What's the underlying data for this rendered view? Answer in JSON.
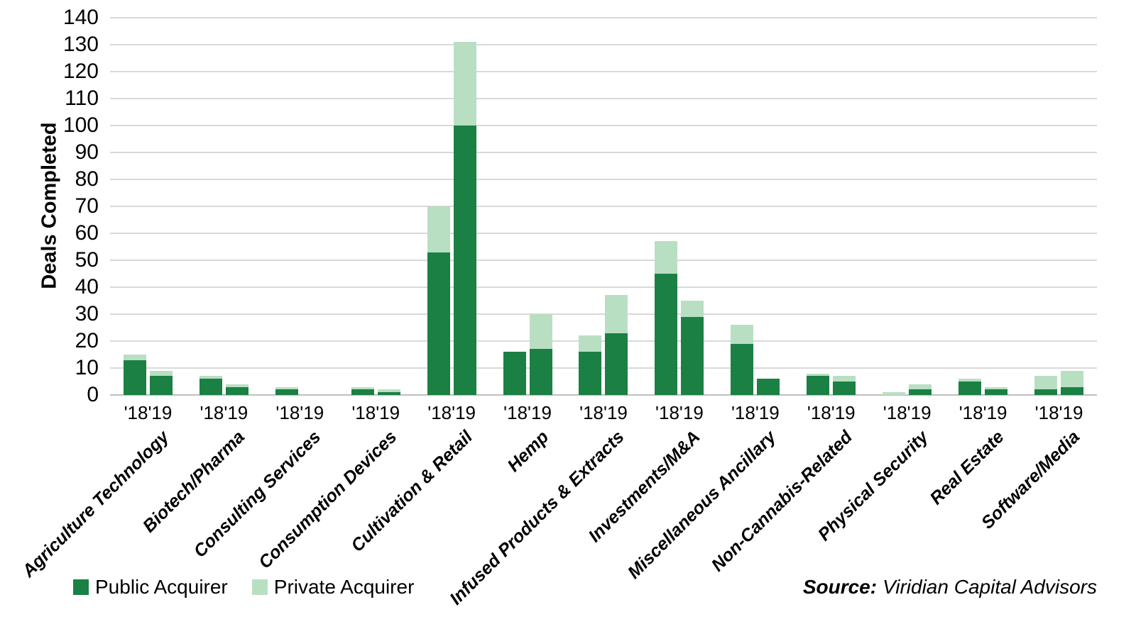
{
  "chart_data": {
    "type": "bar",
    "stacked": true,
    "title": "",
    "xlabel": "",
    "ylabel": "Deals Completed",
    "ylim": [
      0,
      140
    ],
    "ytick_step": 10,
    "yticks": [
      0,
      10,
      20,
      30,
      40,
      50,
      60,
      70,
      80,
      90,
      100,
      110,
      120,
      130,
      140
    ],
    "grid": true,
    "legend_position": "bottom-left",
    "categories": [
      "Agriculture Technology",
      "Biotech/Pharma",
      "Consulting Services",
      "Consumption Devices",
      "Cultivation & Retail",
      "Hemp",
      "Infused Products & Extracts",
      "Investments/M&A",
      "Miscellaneous Ancillary",
      "Non-Cannabis-Related",
      "Physical Security",
      "Real Estate",
      "Software/Media"
    ],
    "year_ticks": [
      "'18",
      "'19"
    ],
    "series": [
      {
        "name": "Public Acquirer",
        "color": "#1a8043",
        "values_18": [
          13,
          6,
          2,
          2,
          53,
          16,
          16,
          45,
          19,
          7,
          0,
          5,
          2
        ],
        "values_19": [
          7,
          3,
          0,
          1,
          100,
          17,
          23,
          29,
          6,
          5,
          2,
          2,
          3
        ]
      },
      {
        "name": "Private Acquirer",
        "color": "#b9dfc3",
        "values_18": [
          2,
          1,
          1,
          1,
          17,
          0,
          6,
          12,
          7,
          1,
          1,
          1,
          5
        ],
        "values_19": [
          2,
          1,
          0,
          1,
          31,
          13,
          14,
          6,
          0,
          2,
          2,
          1,
          6
        ]
      }
    ]
  },
  "legend": {
    "items": [
      {
        "label": "Public Acquirer",
        "color": "#1a8043"
      },
      {
        "label": "Private Acquirer",
        "color": "#b9dfc3"
      }
    ]
  },
  "source": {
    "prefix": "Source:",
    "text": "Viridian Capital Advisors"
  },
  "colors": {
    "public_green": "#1a8043",
    "private_green": "#b9dfc3",
    "gridline_gray": "#d9d9d9",
    "axis_gray": "#bfbfbf",
    "text_black": "#000000"
  }
}
